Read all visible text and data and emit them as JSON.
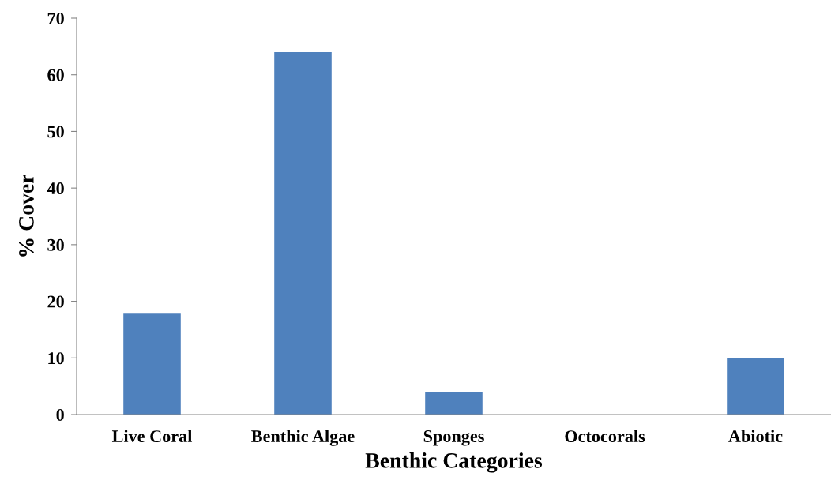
{
  "chart_data": {
    "type": "bar",
    "xlabel": "Benthic Categories",
    "ylabel": "% Cover",
    "categories": [
      "Live Coral",
      "Benthic Algae",
      "Sponges",
      "Octocorals",
      "Abiotic"
    ],
    "values": [
      17.8,
      64.0,
      3.9,
      0,
      9.9
    ],
    "color": "#4f81bd",
    "ylim": [
      0,
      70
    ],
    "yticks": [
      0,
      10,
      20,
      30,
      40,
      50,
      60,
      70
    ],
    "grid": false
  }
}
